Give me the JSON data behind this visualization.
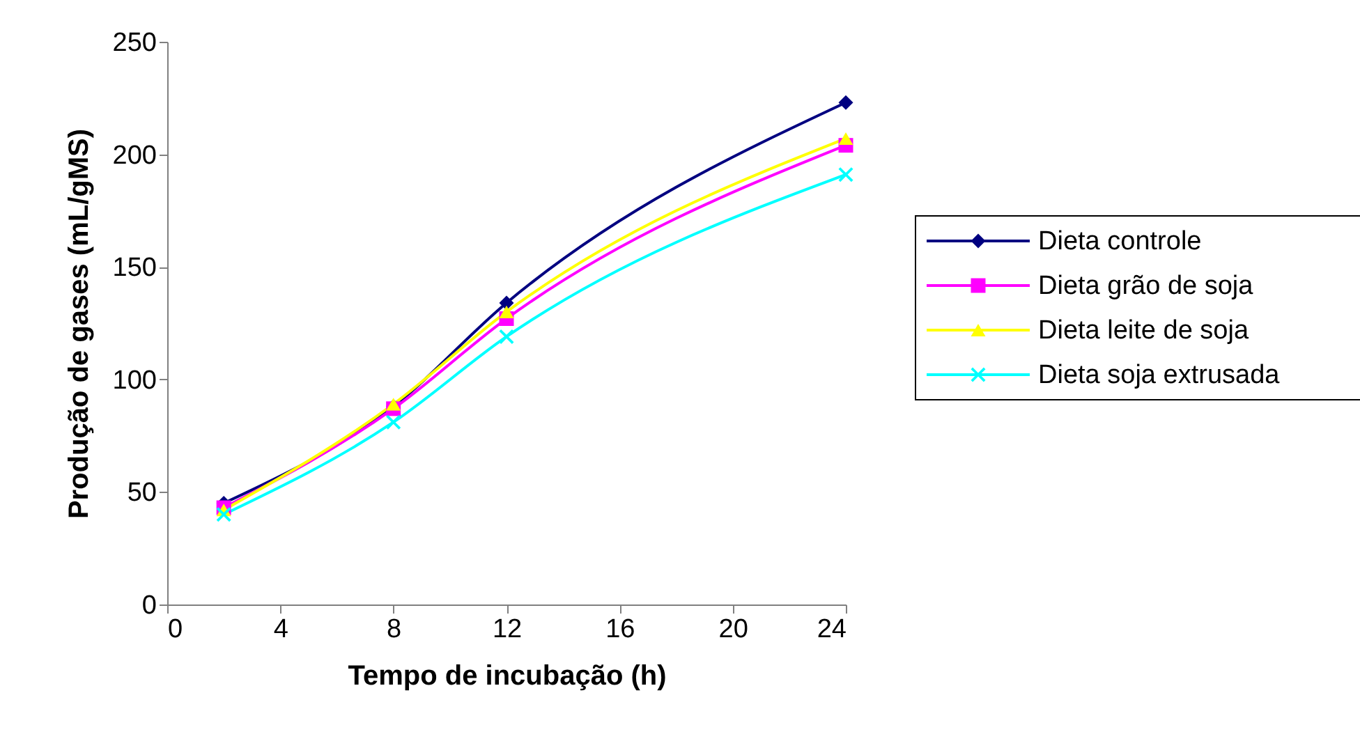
{
  "chart_data": {
    "type": "line",
    "xlabel": "Tempo de incubação (h)",
    "ylabel": "Produção de gases (mL/gMS)",
    "x": [
      2,
      8,
      12,
      24
    ],
    "series": [
      {
        "name": "Dieta controle",
        "color": "#000080",
        "marker": "diamond",
        "values": [
          45,
          88,
          134,
          223
        ]
      },
      {
        "name": "Dieta grão de soja",
        "color": "#ff00ff",
        "marker": "square",
        "values": [
          43,
          87,
          127,
          204
        ]
      },
      {
        "name": "Dieta leite de soja",
        "color": "#ffff00",
        "marker": "triangle",
        "values": [
          42,
          89,
          130,
          207
        ]
      },
      {
        "name": "Dieta soja extrusada",
        "color": "#00ffff",
        "marker": "cross",
        "values": [
          40,
          81,
          119,
          191
        ]
      }
    ],
    "xlim": [
      0,
      24
    ],
    "xticks": [
      0,
      4,
      8,
      12,
      16,
      20,
      24
    ],
    "ylim": [
      0,
      250
    ],
    "yticks": [
      0,
      50,
      100,
      150,
      200,
      250
    ],
    "grid": false,
    "legend": "right"
  }
}
